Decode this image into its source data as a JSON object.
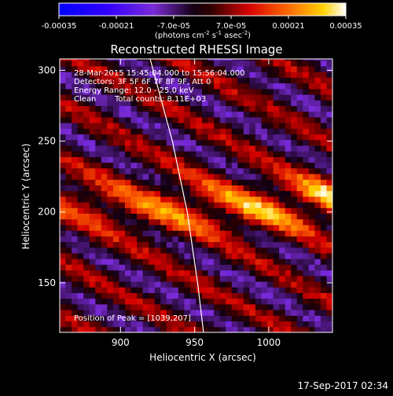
{
  "colorbar": {
    "ticks": [
      "-0.00035",
      "-0.00021",
      "-7.0e-05",
      "7.0e-05",
      "0.00021",
      "0.00035"
    ],
    "units_main": "(photons cm",
    "units_exp1": "-2",
    "units_mid": " s",
    "units_exp2": "-1",
    "units_tail": " asec",
    "units_exp3": "-2",
    "units_close": ")",
    "range": [
      -0.00035,
      0.00035
    ]
  },
  "image_info": {
    "time_range": "28-Mar-2015 15:45:04.000 to 15:56:04.000",
    "detectors": "Detectors: 3F 5F 6F 7F 8F 9F, Att 0",
    "energy_range": "Energy Range: 12.0 - 25.0 keV",
    "algorithm": "Clean",
    "total_counts": "Total counts: 8.11E+03",
    "peak_position": "Position of Peak = [1039,207]"
  },
  "footer_date": "17-Sep-2017 02:34",
  "colors": {
    "background": "#000000",
    "frame": "#ffffff",
    "limb": "#ffffff"
  },
  "chart_data": {
    "type": "heatmap",
    "title": "Reconstructed RHESSI Image",
    "xlabel": "Heliocentric X (arcsec)",
    "ylabel": "Heliocentric Y (arcsec)",
    "x_ticks": [
      "900",
      "950",
      "1000"
    ],
    "y_ticks": [
      "150",
      "200",
      "250",
      "300"
    ],
    "x_tick_values": [
      900,
      950,
      1000
    ],
    "y_tick_values": [
      150,
      200,
      250,
      300
    ],
    "xlim": [
      859,
      1043
    ],
    "ylim": [
      115,
      308
    ],
    "colormap": "blue-purple-black-red-yellow-white",
    "bright_ridge": [
      [
        862,
        205
      ],
      [
        925,
        200
      ],
      [
        1000,
        202
      ],
      [
        1039,
        207
      ]
    ],
    "peak": [
      1039,
      207
    ],
    "peak_value": 0.00035,
    "limb_curve": [
      [
        920,
        308
      ],
      [
        935,
        250
      ],
      [
        945,
        200
      ],
      [
        952,
        150
      ],
      [
        956,
        115
      ]
    ]
  }
}
